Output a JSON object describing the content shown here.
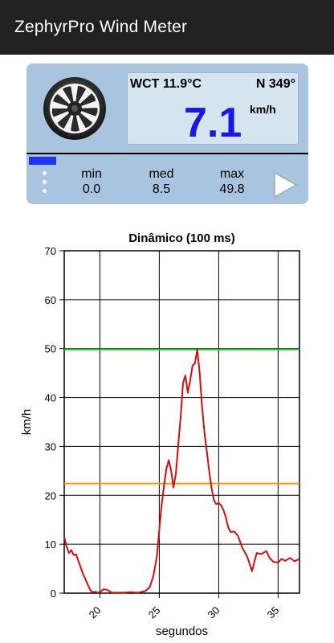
{
  "app": {
    "title": "ZephyrPro Wind Meter"
  },
  "meter": {
    "wct": "WCT 11.9°C",
    "direction": "N 349°",
    "speed": "7.1",
    "unit": "km/h",
    "stats": [
      {
        "label": "min",
        "value": "0.0"
      },
      {
        "label": "med",
        "value": "8.5"
      },
      {
        "label": "max",
        "value": "49.8"
      }
    ],
    "colors": {
      "speed": "#1717e6",
      "level": "#1f31ff",
      "panel": "#a9c4de"
    },
    "icons": {
      "fan": "fan-icon",
      "menu": "more-vert-icon",
      "play": "play-icon"
    }
  },
  "chart_data": {
    "type": "line",
    "title": "Dinâmico (100 ms)",
    "xlabel": "segundos",
    "ylabel": "km/h",
    "xlim": [
      17,
      36.8
    ],
    "ylim": [
      0,
      70
    ],
    "xticks": [
      20,
      25,
      30,
      35
    ],
    "yticks": [
      0,
      10,
      20,
      30,
      40,
      50,
      60,
      70
    ],
    "grid": true,
    "thresholds": [
      {
        "value": 49.8,
        "color": "#22cc22"
      },
      {
        "value": 22.4,
        "color": "#ff9900"
      }
    ],
    "series": [
      {
        "color": "#cc1111",
        "x": [
          17.0,
          17.2,
          17.4,
          17.6,
          17.8,
          18.0,
          18.2,
          18.4,
          18.6,
          18.8,
          19.0,
          19.2,
          19.4,
          19.6,
          19.8,
          20.0,
          20.3,
          20.6,
          21.0,
          21.4,
          22.0,
          22.6,
          23.2,
          23.8,
          24.2,
          24.5,
          24.8,
          25.0,
          25.2,
          25.4,
          25.6,
          25.8,
          26.0,
          26.2,
          26.4,
          26.6,
          26.8,
          27.0,
          27.2,
          27.4,
          27.6,
          27.8,
          28.0,
          28.2,
          28.4,
          28.6,
          28.8,
          29.0,
          29.2,
          29.4,
          29.6,
          29.8,
          30.0,
          30.2,
          30.4,
          30.6,
          30.8,
          31.0,
          31.3,
          31.6,
          32.0,
          32.4,
          32.8,
          33.2,
          33.6,
          34.0,
          34.3,
          34.6,
          35.0,
          35.3,
          35.6,
          36.0,
          36.4,
          36.8
        ],
        "values": [
          11.5,
          9.5,
          8.2,
          8.8,
          7.8,
          7.9,
          6.5,
          5.2,
          3.8,
          2.8,
          1.6,
          0.6,
          0.2,
          0.3,
          0.1,
          0.2,
          0.8,
          0.7,
          0.1,
          0.1,
          0.1,
          0.2,
          0.1,
          0.4,
          1.2,
          3.5,
          7.5,
          13.0,
          18.0,
          22.0,
          25.5,
          27.2,
          25.0,
          21.6,
          24.5,
          30.5,
          36.0,
          43.0,
          44.5,
          41.0,
          43.5,
          46.5,
          47.0,
          49.8,
          45.0,
          38.0,
          33.0,
          29.0,
          25.0,
          21.5,
          19.0,
          18.2,
          18.4,
          18.0,
          17.0,
          15.5,
          13.5,
          12.5,
          12.6,
          11.8,
          9.2,
          7.5,
          4.5,
          8.2,
          8.0,
          8.6,
          7.2,
          6.4,
          6.3,
          7.0,
          6.6,
          7.2,
          6.5,
          7.0
        ]
      }
    ]
  }
}
